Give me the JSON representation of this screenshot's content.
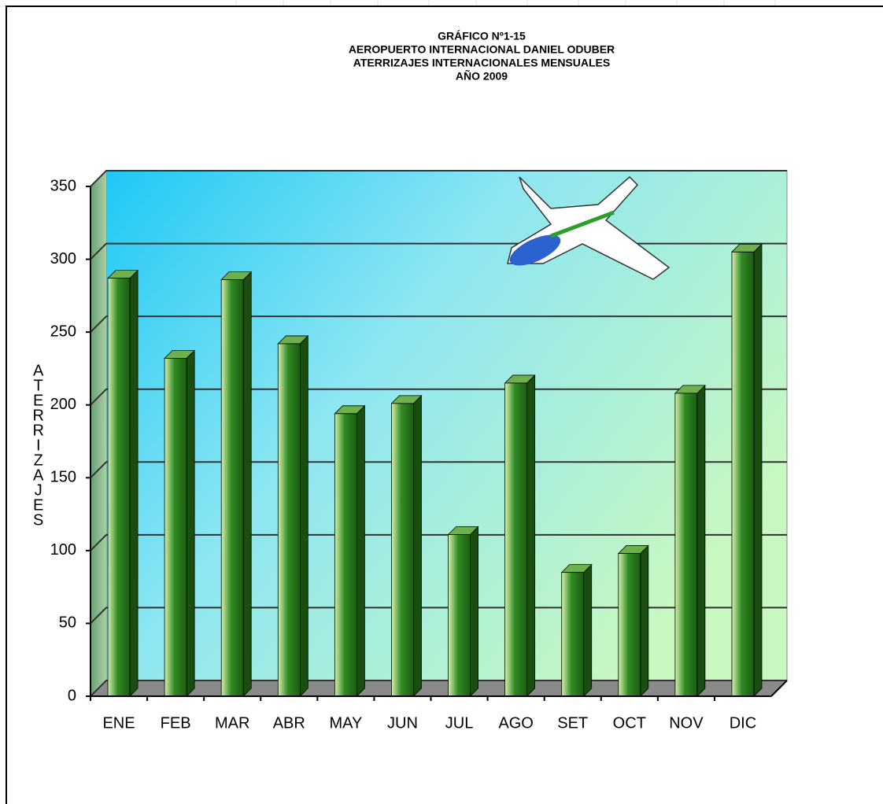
{
  "chart_data": {
    "type": "bar",
    "title": [
      "GRÁFICO Nº1-15",
      "AEROPUERTO INTERNACIONAL DANIEL ODUBER",
      "ATERRIZAJES INTERNACIONALES MENSUALES",
      "AÑO 2009"
    ],
    "y_label": "ATERRIZAJES",
    "categories": [
      "ENE",
      "FEB",
      "MAR",
      "ABR",
      "MAY",
      "JUN",
      "JUL",
      "AGO",
      "SET",
      "OCT",
      "NOV",
      "DIC"
    ],
    "values": [
      287,
      232,
      286,
      242,
      194,
      201,
      111,
      215,
      85,
      98,
      208,
      305
    ],
    "color": "#2e7d1f",
    "ylim": [
      0,
      350
    ],
    "yticks": [
      0,
      50,
      100,
      150,
      200,
      250,
      300,
      350
    ],
    "grid": true
  }
}
